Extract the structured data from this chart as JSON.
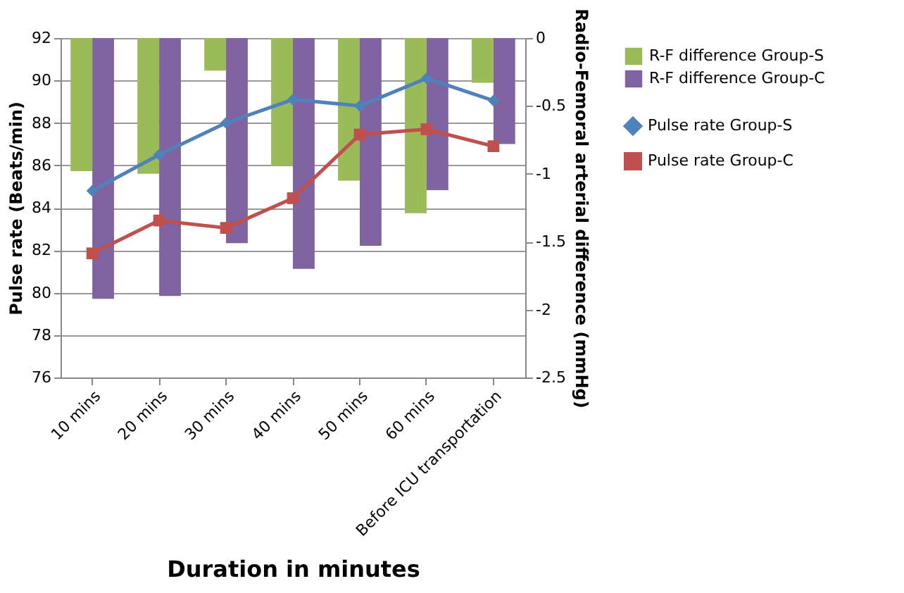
{
  "chart_data": {
    "type": "bar",
    "categories": [
      "10 mins",
      "20 mins",
      "30 mins",
      "40 mins",
      "50 mins",
      "60 mins",
      "Before ICU transportation"
    ],
    "series": [
      {
        "name": "R-F difference Group-S",
        "axis": "y2",
        "color": "#9bbb59",
        "values": [
          -0.98,
          -1.0,
          -0.24,
          -0.94,
          -1.05,
          -1.29,
          -0.33
        ]
      },
      {
        "name": "R-F difference Group-C",
        "axis": "y2",
        "color": "#8064a2",
        "values": [
          -1.92,
          -1.9,
          -1.51,
          -1.7,
          -1.53,
          -1.12,
          -0.78
        ]
      },
      {
        "name": "Pulse rate Group-S",
        "type": "line",
        "color": "#4f81bd",
        "marker": "diamond",
        "values": [
          84.8,
          86.5,
          88.0,
          89.1,
          88.8,
          90.1,
          89.05
        ]
      },
      {
        "name": "Pulse rate Group-C",
        "type": "line",
        "color": "#c0504d",
        "marker": "square",
        "values": [
          81.85,
          83.4,
          83.05,
          84.45,
          87.45,
          87.7,
          86.9
        ]
      }
    ],
    "xlabel": "Duration in minutes",
    "ylabel": "Pulse rate (Beats/min)",
    "y2label": "Radio-Femoral arterial difference (mmHg)",
    "ylim": [
      76,
      92
    ],
    "yticks": [
      76,
      78,
      80,
      82,
      84,
      86,
      88,
      90,
      92
    ],
    "y2lim": [
      -2.5,
      0
    ],
    "y2ticks": [
      -2.5,
      -2,
      -1.5,
      -1,
      -0.5,
      0
    ],
    "grid": "y",
    "legend": "right"
  }
}
